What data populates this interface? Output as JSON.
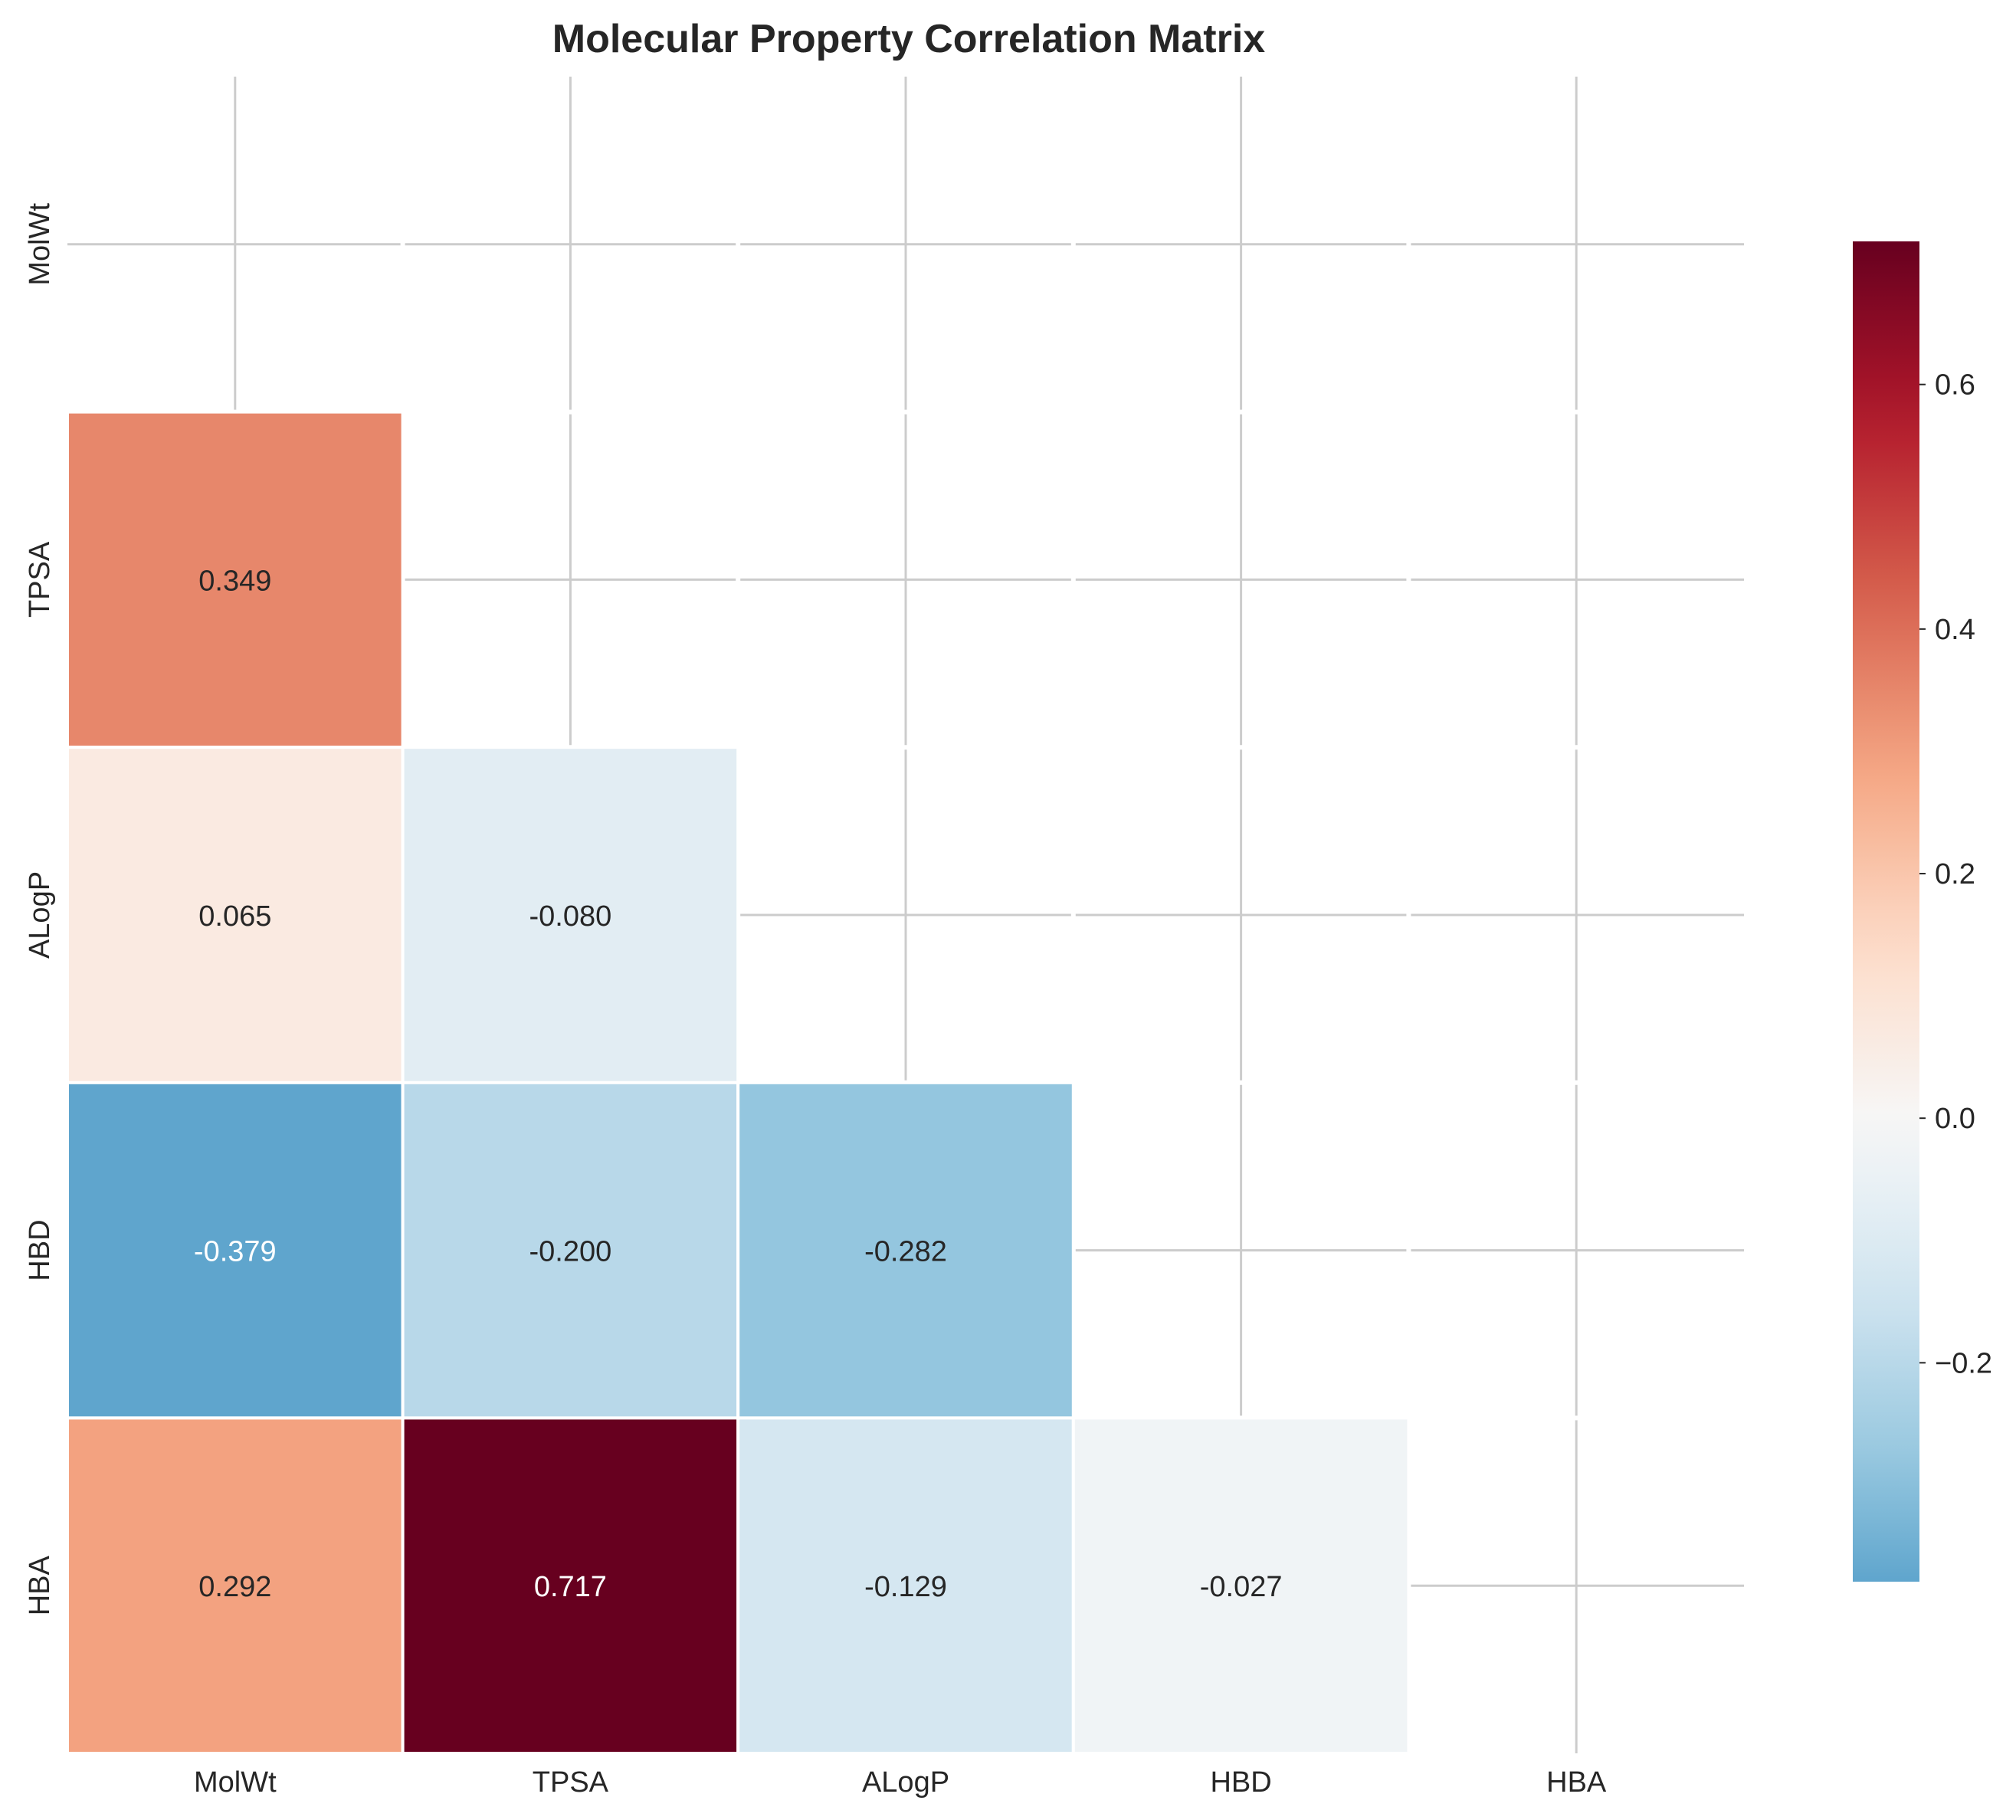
{
  "chart_data": {
    "type": "heatmap",
    "title": "Molecular Property Correlation Matrix",
    "variables": [
      "MolWt",
      "TPSA",
      "ALogP",
      "HBD",
      "HBA"
    ],
    "mask": "upper triangle incl. diagonal",
    "cells": [
      {
        "row": "TPSA",
        "col": "MolWt",
        "value": 0.349,
        "label": "0.349"
      },
      {
        "row": "ALogP",
        "col": "MolWt",
        "value": 0.065,
        "label": "0.065"
      },
      {
        "row": "ALogP",
        "col": "TPSA",
        "value": -0.08,
        "label": "-0.080"
      },
      {
        "row": "HBD",
        "col": "MolWt",
        "value": -0.379,
        "label": "-0.379"
      },
      {
        "row": "HBD",
        "col": "TPSA",
        "value": -0.2,
        "label": "-0.200"
      },
      {
        "row": "HBD",
        "col": "ALogP",
        "value": -0.282,
        "label": "-0.282"
      },
      {
        "row": "HBA",
        "col": "MolWt",
        "value": 0.292,
        "label": "0.292"
      },
      {
        "row": "HBA",
        "col": "TPSA",
        "value": 0.717,
        "label": "0.717"
      },
      {
        "row": "HBA",
        "col": "ALogP",
        "value": -0.129,
        "label": "-0.129"
      },
      {
        "row": "HBA",
        "col": "HBD",
        "value": -0.027,
        "label": "-0.027"
      }
    ],
    "colorbar": {
      "colormap": "RdBu_r",
      "vmin": -0.379,
      "vmax": 0.717,
      "center": 0,
      "ticks": [
        -0.2,
        0.0,
        0.2,
        0.4,
        0.6
      ],
      "tick_labels": [
        "−0.2",
        "0.0",
        "0.2",
        "0.4",
        "0.6"
      ]
    },
    "grid": true
  }
}
